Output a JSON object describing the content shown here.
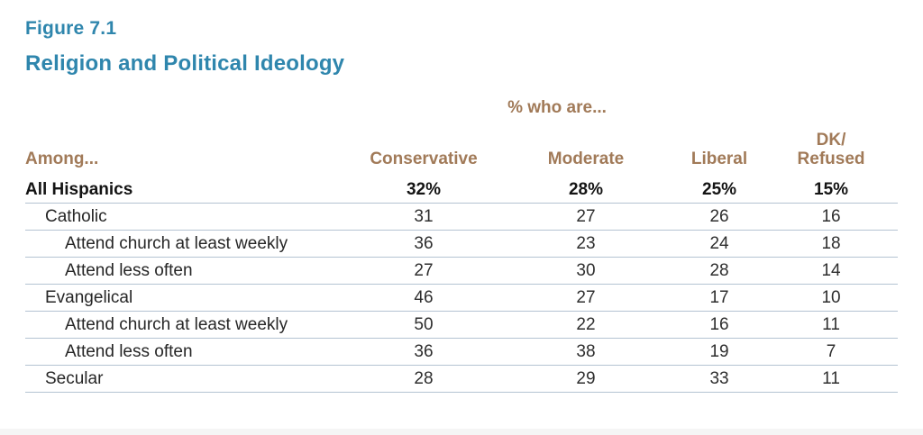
{
  "figure": {
    "label": "Figure 7.1",
    "title": "Religion and Political Ideology"
  },
  "table": {
    "span_header": "% who are...",
    "among_label": "Among...",
    "columns": [
      "Conservative",
      "Moderate",
      "Liberal",
      "DK/\nRefused"
    ],
    "rows": [
      {
        "label": "All Hispanics",
        "indent": 0,
        "bold": true,
        "values": [
          "32%",
          "28%",
          "25%",
          "15%"
        ]
      },
      {
        "label": "Catholic",
        "indent": 1,
        "bold": false,
        "values": [
          "31",
          "27",
          "26",
          "16"
        ]
      },
      {
        "label": "Attend church at least weekly",
        "indent": 2,
        "bold": false,
        "values": [
          "36",
          "23",
          "24",
          "18"
        ]
      },
      {
        "label": "Attend less often",
        "indent": 2,
        "bold": false,
        "values": [
          "27",
          "30",
          "28",
          "14"
        ]
      },
      {
        "label": "Evangelical",
        "indent": 1,
        "bold": false,
        "values": [
          "46",
          "27",
          "17",
          "10"
        ]
      },
      {
        "label": "Attend church at least weekly",
        "indent": 2,
        "bold": false,
        "values": [
          "50",
          "22",
          "16",
          "11"
        ]
      },
      {
        "label": "Attend less often",
        "indent": 2,
        "bold": false,
        "values": [
          "36",
          "38",
          "19",
          "7"
        ]
      },
      {
        "label": "Secular",
        "indent": 1,
        "bold": false,
        "values": [
          "28",
          "29",
          "33",
          "11"
        ]
      }
    ]
  },
  "colors": {
    "title_blue": "#2f86ad",
    "header_brown": "#a17a58",
    "row_line": "#b4c3d2",
    "body_text": "#2e2e2e"
  },
  "chart_data": {
    "type": "table",
    "figure_label": "Figure 7.1",
    "title": "Religion and Political Ideology",
    "unit_note": "% who are...",
    "row_header": "Among...",
    "columns": [
      "Conservative",
      "Moderate",
      "Liberal",
      "DK/Refused"
    ],
    "rows": [
      {
        "group": "All Hispanics",
        "indent": 0,
        "values": [
          32,
          28,
          25,
          15
        ]
      },
      {
        "group": "Catholic",
        "indent": 1,
        "values": [
          31,
          27,
          26,
          16
        ]
      },
      {
        "group": "Catholic - Attend church at least weekly",
        "indent": 2,
        "values": [
          36,
          23,
          24,
          18
        ]
      },
      {
        "group": "Catholic - Attend less often",
        "indent": 2,
        "values": [
          27,
          30,
          28,
          14
        ]
      },
      {
        "group": "Evangelical",
        "indent": 1,
        "values": [
          46,
          27,
          17,
          10
        ]
      },
      {
        "group": "Evangelical - Attend church at least weekly",
        "indent": 2,
        "values": [
          50,
          22,
          16,
          11
        ]
      },
      {
        "group": "Evangelical - Attend less often",
        "indent": 2,
        "values": [
          36,
          38,
          19,
          7
        ]
      },
      {
        "group": "Secular",
        "indent": 1,
        "values": [
          28,
          29,
          33,
          11
        ]
      }
    ]
  }
}
